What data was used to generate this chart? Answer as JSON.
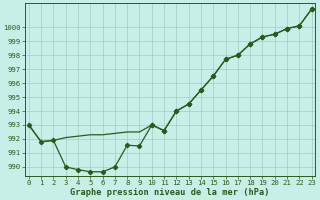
{
  "line1_x": [
    0,
    1,
    2,
    3,
    4,
    5,
    6,
    7,
    8,
    9,
    10,
    11,
    12,
    13,
    14,
    15,
    16,
    17,
    18,
    19,
    20,
    21,
    22,
    23
  ],
  "line1_y": [
    993.0,
    991.8,
    991.9,
    992.1,
    992.2,
    992.3,
    992.3,
    992.4,
    992.5,
    992.5,
    993.0,
    992.6,
    994.0,
    994.5,
    995.5,
    996.5,
    997.7,
    998.0,
    998.8,
    999.3,
    999.5,
    999.9,
    1000.1,
    1001.3
  ],
  "line2_x": [
    0,
    1,
    2,
    3,
    4,
    5,
    6,
    7,
    8,
    9,
    10,
    11,
    12,
    13,
    14,
    15,
    16,
    17,
    18,
    19,
    20,
    21,
    22,
    23
  ],
  "line2_y": [
    993.0,
    991.8,
    991.9,
    990.0,
    989.8,
    989.65,
    989.65,
    990.0,
    991.55,
    991.5,
    993.0,
    992.6,
    994.0,
    994.5,
    995.5,
    996.5,
    997.7,
    998.0,
    998.8,
    999.3,
    999.5,
    999.9,
    1000.1,
    1001.3
  ],
  "line_color": "#2d5a1b",
  "bg_color": "#c8eee8",
  "grid_color": "#9ecec4",
  "xlabel": "Graphe pression niveau de la mer (hPa)",
  "xlim": [
    -0.3,
    23.3
  ],
  "ylim": [
    989.35,
    1001.7
  ],
  "yticks": [
    990,
    991,
    992,
    993,
    994,
    995,
    996,
    997,
    998,
    999,
    1000
  ],
  "xticks": [
    0,
    1,
    2,
    3,
    4,
    5,
    6,
    7,
    8,
    9,
    10,
    11,
    12,
    13,
    14,
    15,
    16,
    17,
    18,
    19,
    20,
    21,
    22,
    23
  ],
  "tick_fontsize": 5.2,
  "xlabel_fontsize": 6.2
}
